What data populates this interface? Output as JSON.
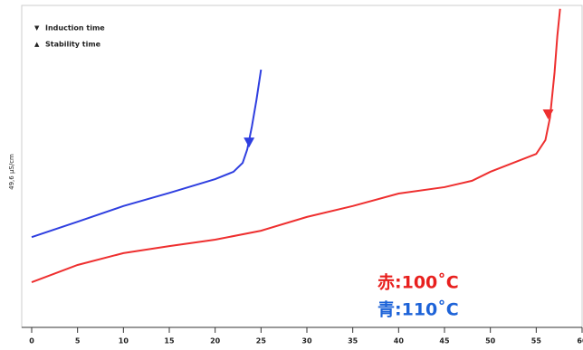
{
  "chart_data": {
    "type": "line",
    "y_label": "49,6 µS/cm",
    "legend": [
      {
        "symbol": "▼",
        "label": "Induction time"
      },
      {
        "symbol": "▲",
        "label": "Stability time"
      }
    ],
    "annotations": [
      {
        "text": "赤:100˚C",
        "color": "#e8201e"
      },
      {
        "text": "青:110˚C",
        "color": "#1d63d8"
      }
    ],
    "xlim": [
      0,
      60
    ],
    "xticks": [
      0,
      5,
      10,
      15,
      20,
      25,
      30,
      35,
      40,
      45,
      50,
      55,
      60
    ],
    "ylim": [
      0,
      100
    ],
    "series": [
      {
        "color": "#2f3fe0",
        "x": [
          0,
          5,
          10,
          15,
          20,
          22,
          23,
          23.5,
          24,
          24.5,
          25
        ],
        "values": [
          28.2,
          33,
          37.9,
          42,
          46.3,
          48.6,
          51.4,
          55.6,
          62.7,
          71,
          80.5
        ],
        "marker": {
          "x": 23.7,
          "y": 57.6
        }
      },
      {
        "color": "#ee2f2f",
        "x": [
          0,
          5,
          10,
          15,
          20,
          25,
          30,
          35,
          40,
          45,
          48,
          50,
          55,
          56,
          56.5,
          57,
          57.3,
          57.6
        ],
        "values": [
          14.1,
          19.5,
          23.2,
          25.4,
          27.4,
          30.2,
          34.5,
          37.9,
          41.8,
          43.8,
          45.8,
          48.6,
          54.2,
          58.5,
          65.5,
          79.7,
          91,
          99.5
        ],
        "marker": {
          "x": 56.3,
          "y": 66.4
        }
      }
    ]
  }
}
